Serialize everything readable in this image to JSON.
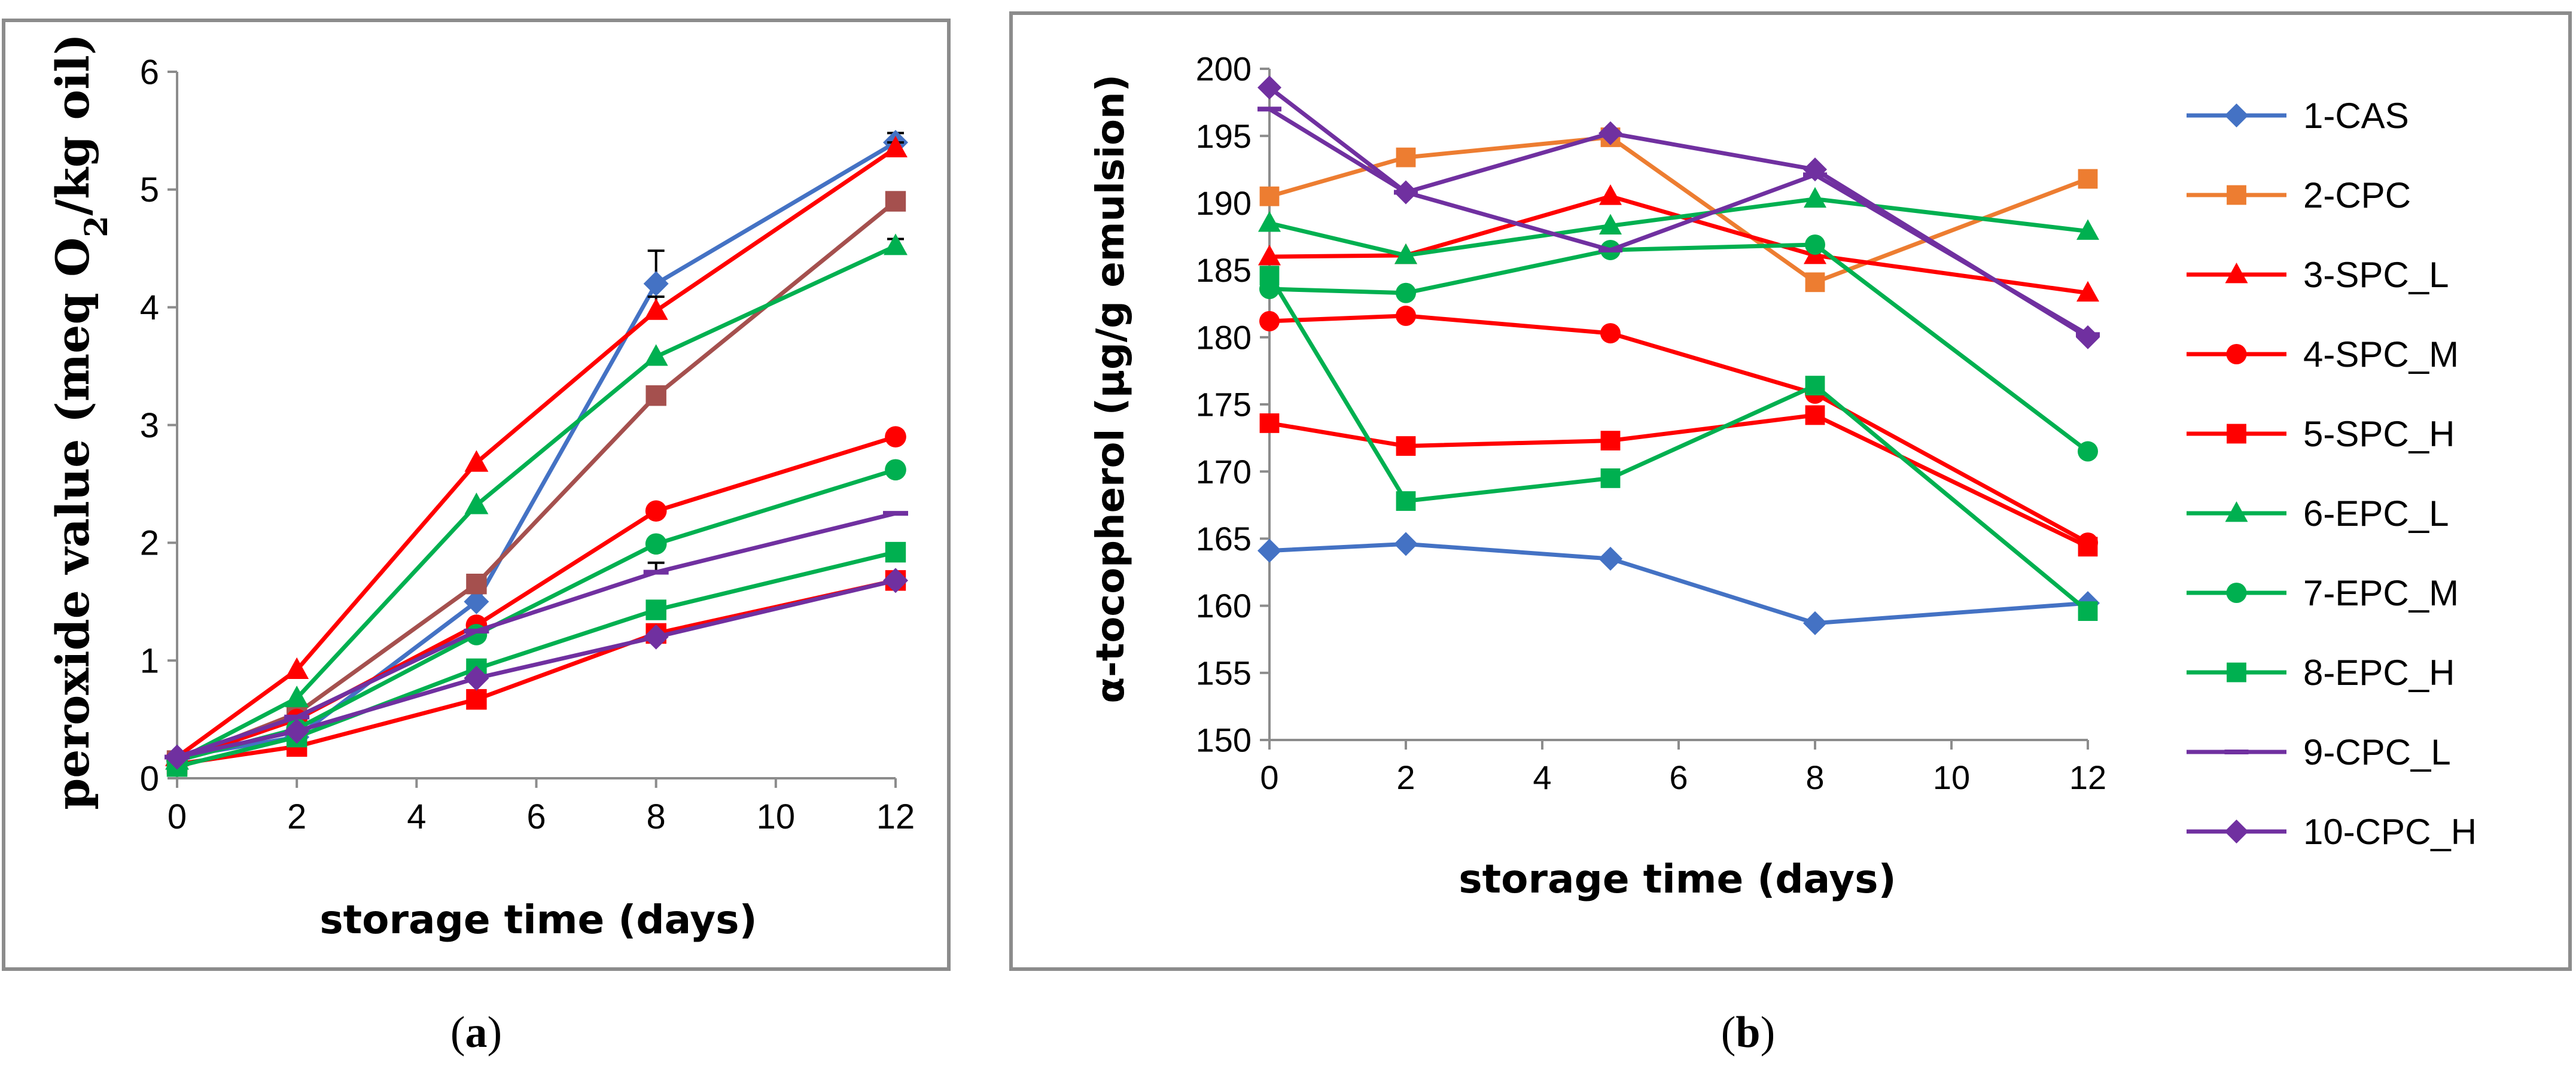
{
  "chart_data": [
    {
      "id": "a",
      "type": "line",
      "caption": "(a)",
      "caption_letter": "a",
      "xlabel": "storage time (days)",
      "ylabel_before": "peroxide value (meq O",
      "ylabel_sub": "2",
      "ylabel_after": "/kg oil)",
      "xlim": [
        0,
        12
      ],
      "ylim": [
        0,
        6
      ],
      "xticks": [
        0,
        2,
        4,
        6,
        8,
        10,
        12
      ],
      "yticks": [
        0,
        1,
        2,
        3,
        4,
        5,
        6
      ],
      "x": [
        0,
        2,
        5,
        8,
        12
      ],
      "legend": "none",
      "series": [
        {
          "key": "cas",
          "color": "#4472C4",
          "marker": "diamond",
          "values": [
            0.18,
            0.35,
            1.5,
            4.2,
            5.4
          ],
          "err": [
            0,
            0,
            0,
            0.28,
            0.08
          ]
        },
        {
          "key": "cpc",
          "color": "#A5504E",
          "marker": "square",
          "values": [
            0.15,
            0.55,
            1.65,
            3.25,
            4.9
          ],
          "err": [
            0,
            0,
            0,
            0,
            0
          ]
        },
        {
          "key": "spc-l",
          "color": "#FF0000",
          "marker": "triangle",
          "values": [
            0.18,
            0.92,
            2.68,
            3.97,
            5.35
          ],
          "err": [
            0,
            0,
            0,
            0.12,
            0.05
          ]
        },
        {
          "key": "spc-m",
          "color": "#FF0000",
          "marker": "circle",
          "values": [
            0.15,
            0.5,
            1.3,
            2.27,
            2.9
          ],
          "err": [
            0,
            0,
            0,
            0,
            0
          ]
        },
        {
          "key": "spc-h",
          "color": "#FF0000",
          "marker": "square",
          "values": [
            0.12,
            0.27,
            0.67,
            1.23,
            1.68
          ],
          "err": [
            0,
            0,
            0,
            0,
            0
          ]
        },
        {
          "key": "epc-l",
          "color": "#00B050",
          "marker": "triangle",
          "values": [
            0.15,
            0.68,
            2.32,
            3.58,
            4.52
          ],
          "err": [
            0,
            0,
            0,
            0,
            0.06
          ]
        },
        {
          "key": "epc-m",
          "color": "#00B050",
          "marker": "circle",
          "values": [
            0.15,
            0.42,
            1.22,
            1.99,
            2.62
          ],
          "err": [
            0,
            0,
            0,
            0,
            0
          ]
        },
        {
          "key": "epc-h",
          "color": "#00B050",
          "marker": "square",
          "values": [
            0.1,
            0.35,
            0.93,
            1.43,
            1.92
          ],
          "err": [
            0,
            0,
            0,
            0,
            0
          ]
        },
        {
          "key": "cpc-l",
          "color": "#7030A0",
          "marker": "dash",
          "values": [
            0.18,
            0.52,
            1.25,
            1.75,
            2.25
          ],
          "err": [
            0,
            0,
            0,
            0.08,
            0
          ]
        },
        {
          "key": "cpc-h",
          "color": "#7030A0",
          "marker": "diamond",
          "values": [
            0.18,
            0.4,
            0.85,
            1.2,
            1.68
          ],
          "err": [
            0,
            0,
            0,
            0,
            0
          ]
        }
      ]
    },
    {
      "id": "b",
      "type": "line",
      "caption": "(b)",
      "caption_letter": "b",
      "xlabel": "storage time (days)",
      "ylabel": "α-tocopherol (μg/g emulsion)",
      "xlim": [
        0,
        12
      ],
      "ylim": [
        150,
        200
      ],
      "xticks": [
        0,
        2,
        4,
        6,
        8,
        10,
        12
      ],
      "yticks": [
        150,
        155,
        160,
        165,
        170,
        175,
        180,
        185,
        190,
        195,
        200
      ],
      "x": [
        0,
        2,
        5,
        8,
        12
      ],
      "legend": "right",
      "series": [
        {
          "key": "cas",
          "name": "1-CAS",
          "color": "#4472C4",
          "marker": "diamond",
          "values": [
            164.1,
            164.6,
            163.5,
            158.7,
            160.2
          ]
        },
        {
          "key": "cpc",
          "name": "2-CPC",
          "color": "#ED7D31",
          "marker": "square",
          "values": [
            190.5,
            193.4,
            194.9,
            184.1,
            191.8
          ]
        },
        {
          "key": "spc-l",
          "name": "3-SPC_L",
          "color": "#FF0000",
          "marker": "triangle",
          "values": [
            186.0,
            186.1,
            190.5,
            186.1,
            183.3
          ]
        },
        {
          "key": "spc-m",
          "name": "4-SPC_M",
          "color": "#FF0000",
          "marker": "circle",
          "values": [
            181.2,
            181.6,
            180.3,
            175.8,
            164.7
          ]
        },
        {
          "key": "spc-h",
          "name": "5-SPC_H",
          "color": "#FF0000",
          "marker": "square",
          "values": [
            173.6,
            171.9,
            172.3,
            174.2,
            164.4
          ]
        },
        {
          "key": "epc-l",
          "name": "6-EPC_L",
          "color": "#00B050",
          "marker": "triangle",
          "values": [
            188.5,
            186.1,
            188.3,
            190.3,
            187.9
          ]
        },
        {
          "key": "epc-m",
          "name": "7-EPC_M",
          "color": "#00B050",
          "marker": "circle",
          "values": [
            183.6,
            183.3,
            186.5,
            186.9,
            171.5
          ]
        },
        {
          "key": "epc-h",
          "name": "8-EPC_H",
          "color": "#00B050",
          "marker": "square",
          "values": [
            184.6,
            167.8,
            169.5,
            176.4,
            159.6
          ]
        },
        {
          "key": "cpc-l",
          "name": "9-CPC_L",
          "color": "#7030A0",
          "marker": "dash",
          "values": [
            197.0,
            190.8,
            186.5,
            192.1,
            180.2
          ]
        },
        {
          "key": "cpc-h",
          "name": "10-CPC_H",
          "color": "#7030A0",
          "marker": "diamond",
          "values": [
            198.6,
            190.8,
            195.2,
            192.5,
            180.0
          ]
        }
      ]
    }
  ]
}
